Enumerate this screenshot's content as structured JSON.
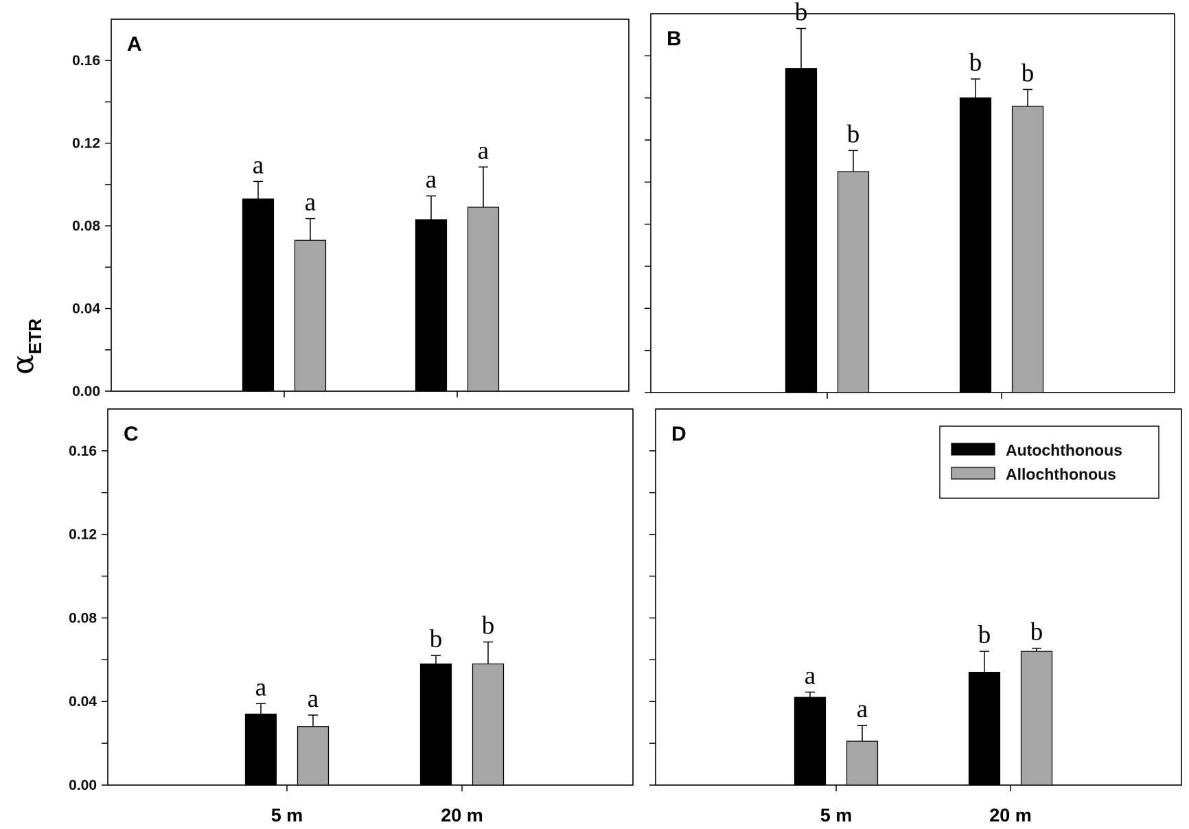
{
  "figure": {
    "ylabel": {
      "main": "α",
      "sub": "ETR"
    },
    "legend": {
      "items": [
        {
          "label": "Autochthonous",
          "color": "#000000"
        },
        {
          "label": "Allochthonous",
          "color": "#a6a6a6"
        }
      ]
    }
  },
  "chart_data": [
    {
      "panel": "A",
      "type": "bar",
      "categories": [
        "5 m",
        "20 m"
      ],
      "ylim": [
        0,
        0.18
      ],
      "yticks": [
        "0.00",
        "0.04",
        "0.08",
        "0.12",
        "0.16"
      ],
      "xticks": [],
      "series": [
        {
          "name": "Autochthonous",
          "color": "#000000",
          "values": [
            0.093,
            0.083
          ],
          "errors": [
            0.0085,
            0.0115
          ],
          "letters": [
            "a",
            "a"
          ]
        },
        {
          "name": "Allochthonous",
          "color": "#a6a6a6",
          "values": [
            0.073,
            0.089
          ],
          "errors": [
            0.0105,
            0.0195
          ],
          "letters": [
            "a",
            "a"
          ]
        }
      ]
    },
    {
      "panel": "B",
      "type": "bar",
      "categories": [
        "5 m",
        "20 m"
      ],
      "ylim": [
        0,
        0.18
      ],
      "yticks": [],
      "xticks": [],
      "series": [
        {
          "name": "Autochthonous",
          "color": "#000000",
          "values": [
            0.154,
            0.14
          ],
          "errors": [
            0.019,
            0.009
          ],
          "letters": [
            "b",
            "b"
          ]
        },
        {
          "name": "Allochthonous",
          "color": "#a6a6a6",
          "values": [
            0.105,
            0.136
          ],
          "errors": [
            0.01,
            0.008
          ],
          "letters": [
            "b",
            "b"
          ]
        }
      ]
    },
    {
      "panel": "C",
      "type": "bar",
      "categories": [
        "5 m",
        "20 m"
      ],
      "ylim": [
        0,
        0.18
      ],
      "yticks": [
        "0.00",
        "0.04",
        "0.08",
        "0.12",
        "0.16"
      ],
      "xticks": [
        "5 m",
        "20 m"
      ],
      "series": [
        {
          "name": "Autochthonous",
          "color": "#000000",
          "values": [
            0.034,
            0.058
          ],
          "errors": [
            0.005,
            0.004
          ],
          "letters": [
            "a",
            "b"
          ]
        },
        {
          "name": "Allochthonous",
          "color": "#a6a6a6",
          "values": [
            0.028,
            0.058
          ],
          "errors": [
            0.0055,
            0.0105
          ],
          "letters": [
            "a",
            "b"
          ]
        }
      ]
    },
    {
      "panel": "D",
      "type": "bar",
      "categories": [
        "5 m",
        "20 m"
      ],
      "ylim": [
        0,
        0.18
      ],
      "yticks": [],
      "xticks": [
        "5 m",
        "20 m"
      ],
      "legend": true,
      "series": [
        {
          "name": "Autochthonous",
          "color": "#000000",
          "values": [
            0.042,
            0.054
          ],
          "errors": [
            0.0025,
            0.01
          ],
          "letters": [
            "a",
            "b"
          ]
        },
        {
          "name": "Allochthonous",
          "color": "#a6a6a6",
          "values": [
            0.021,
            0.064
          ],
          "errors": [
            0.0075,
            0.0015
          ],
          "letters": [
            "a",
            "b"
          ]
        }
      ]
    }
  ]
}
